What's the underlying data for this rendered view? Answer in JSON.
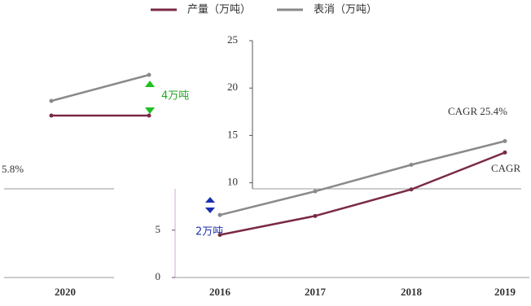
{
  "chart_data": [
    {
      "type": "line",
      "categories": [
        "2016",
        "2017",
        "2018",
        "2019"
      ],
      "series": [
        {
          "name": "产量（万吨）",
          "color": "#7a2a45",
          "values": [
            4.5,
            6.5,
            9.3,
            13.2
          ]
        },
        {
          "name": "表消（万吨）",
          "color": "#8a8a8a",
          "values": [
            6.6,
            9.1,
            11.9,
            14.4
          ]
        }
      ],
      "ylim": [
        0,
        25
      ],
      "yticks": [
        0,
        5,
        10,
        15,
        20,
        25
      ],
      "annotations": [
        "CAGR 25.4%",
        "CAGR",
        "2万吨"
      ]
    },
    {
      "type": "line",
      "categories": [
        "2020",
        null
      ],
      "series": [
        {
          "color": "#7a2a45",
          "values": [
            19.8,
            19.8
          ]
        },
        {
          "color": "#8a8a8a",
          "values": [
            21.6,
            24.8
          ]
        }
      ],
      "ylim": [
        0,
        30
      ],
      "annotations": [
        "4万吨",
        "5.8%"
      ]
    }
  ]
}
